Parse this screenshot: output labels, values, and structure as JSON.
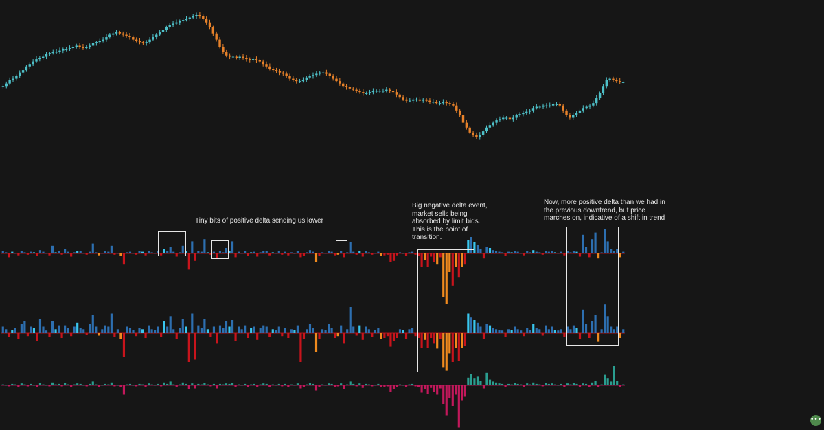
{
  "annotations": {
    "positive_delta": "Tiny bits of positive delta sending us lower",
    "negative_delta_event": "Big negative delta event, market sells being absorbed by limit bids. This is the point of transition.",
    "trend_shift": "Now, more positive delta than we had in the previous downtrend, but price marches on, indicative of a shift in trend"
  },
  "chat_button": {
    "icon": "ellipsis-icon",
    "label": "•••"
  },
  "colors": {
    "background": "#161616",
    "candle_up": "#4ec0c8",
    "candle_down": "#e8822a",
    "delta_pos_bright": "#39c6ee",
    "delta_pos_dark": "#2d6fb0",
    "delta_neg_orange": "#f08a1e",
    "delta_neg_red": "#c8141c",
    "vol_pos": "#2a9d8f",
    "vol_neg": "#c2185b",
    "highlight_box": "#e6e6e6"
  },
  "chart_data": [
    {
      "type": "candlestick",
      "title": "",
      "description_unit": "price (relative, no axis printed)",
      "close_path": [
        0.42,
        0.44,
        0.47,
        0.48,
        0.5,
        0.53,
        0.55,
        0.58,
        0.6,
        0.62,
        0.64,
        0.65,
        0.66,
        0.68,
        0.69,
        0.7,
        0.7,
        0.71,
        0.72,
        0.72,
        0.73,
        0.74,
        0.75,
        0.74,
        0.73,
        0.74,
        0.75,
        0.77,
        0.78,
        0.79,
        0.8,
        0.82,
        0.84,
        0.85,
        0.86,
        0.85,
        0.84,
        0.83,
        0.82,
        0.8,
        0.79,
        0.78,
        0.77,
        0.78,
        0.8,
        0.82,
        0.84,
        0.86,
        0.88,
        0.9,
        0.92,
        0.93,
        0.94,
        0.95,
        0.96,
        0.97,
        0.98,
        0.99,
        1.0,
        0.99,
        0.97,
        0.94,
        0.9,
        0.85,
        0.8,
        0.74,
        0.7,
        0.67,
        0.66,
        0.66,
        0.65,
        0.66,
        0.65,
        0.64,
        0.63,
        0.64,
        0.63,
        0.62,
        0.6,
        0.58,
        0.56,
        0.55,
        0.54,
        0.53,
        0.52,
        0.5,
        0.48,
        0.47,
        0.46,
        0.46,
        0.47,
        0.49,
        0.5,
        0.51,
        0.52,
        0.53,
        0.53,
        0.52,
        0.5,
        0.48,
        0.46,
        0.44,
        0.42,
        0.41,
        0.4,
        0.39,
        0.38,
        0.37,
        0.36,
        0.36,
        0.37,
        0.38,
        0.38,
        0.38,
        0.38,
        0.39,
        0.38,
        0.37,
        0.35,
        0.33,
        0.31,
        0.3,
        0.3,
        0.31,
        0.31,
        0.3,
        0.31,
        0.3,
        0.29,
        0.29,
        0.28,
        0.28,
        0.29,
        0.28,
        0.27,
        0.26,
        0.22,
        0.18,
        0.12,
        0.08,
        0.04,
        0.02,
        0.0,
        0.02,
        0.05,
        0.08,
        0.1,
        0.12,
        0.14,
        0.15,
        0.16,
        0.16,
        0.15,
        0.16,
        0.18,
        0.19,
        0.2,
        0.21,
        0.22,
        0.24,
        0.25,
        0.25,
        0.26,
        0.26,
        0.26,
        0.27,
        0.27,
        0.26,
        0.22,
        0.18,
        0.16,
        0.18,
        0.2,
        0.22,
        0.24,
        0.25,
        0.26,
        0.28,
        0.32,
        0.36,
        0.42,
        0.47,
        0.48,
        0.47,
        0.46,
        0.45,
        0.45
      ]
    },
    {
      "type": "bar",
      "title": "",
      "series": [
        {
          "values": [
            0.04,
            0.02,
            -0.06,
            0.03,
            0.01,
            -0.03,
            0.05,
            0.02,
            -0.02,
            0.03,
            0.02,
            -0.04,
            0.06,
            0.03,
            0.01,
            -0.03,
            0.14,
            0.02,
            0.04,
            -0.02,
            0.08,
            0.03,
            -0.05,
            0.02,
            0.05,
            0.04,
            0.01,
            -0.02,
            0.03,
            0.18,
            0.02,
            -0.03,
            0.01,
            0.04,
            0.03,
            0.14,
            -0.02,
            0.01,
            -0.04,
            -0.18,
            0.02,
            0.03,
            0.01,
            -0.02,
            0.04,
            0.03,
            -0.03,
            0.05,
            0.02,
            0.01,
            0.04,
            -0.03,
            0.08,
            0.04,
            0.12,
            0.03,
            -0.05,
            0.02,
            0.14,
            0.04,
            -0.26,
            0.22,
            -0.12,
            0.05,
            0.03,
            0.26,
            0.02,
            -0.02,
            0.03,
            -0.08,
            0.04,
            0.02,
            0.1,
            0.04,
            0.22,
            -0.06,
            0.03,
            0.01,
            0.04,
            -0.04,
            0.02,
            0.03,
            -0.05,
            0.02,
            0.05,
            0.04,
            -0.03,
            0.02,
            0.01,
            0.04,
            -0.02,
            0.03,
            -0.03,
            0.02,
            0.01,
            0.04,
            -0.06,
            -0.04,
            0.02,
            0.06,
            0.03,
            -0.14,
            -0.04,
            0.02,
            0.01,
            0.05,
            0.03,
            -0.03,
            -0.02,
            0.04,
            -0.06,
            0.02,
            0.2,
            0.03,
            -0.02,
            0.04,
            -0.05,
            0.04,
            0.02,
            -0.02,
            0.01,
            0.03,
            -0.04,
            -0.03,
            -0.02,
            -0.14,
            -0.12,
            -0.03,
            0.02,
            0.01,
            -0.04,
            0.02,
            0.03,
            -0.02,
            -0.04,
            -0.22,
            -0.1,
            -0.22,
            -0.05,
            -0.14,
            -0.18,
            -0.06,
            -0.7,
            -0.82,
            -0.3,
            -0.52,
            -0.22,
            -0.38,
            -0.22,
            -0.18,
            0.24,
            0.3,
            0.2,
            0.16,
            0.08,
            -0.08,
            0.12,
            0.1,
            0.06,
            0.04,
            0.03,
            0.02,
            -0.04,
            0.03,
            0.02,
            0.05,
            0.03,
            0.01,
            -0.03,
            0.04,
            0.02,
            0.06,
            0.03,
            0.02,
            -0.02,
            0.05,
            0.03,
            0.04,
            0.02,
            0.01,
            0.03,
            -0.03,
            0.04,
            0.02,
            0.05,
            0.03,
            -0.05,
            0.34,
            0.12,
            -0.06,
            0.26,
            0.38,
            -0.08,
            0.02,
            0.44,
            0.22,
            0.08,
            0.04,
            0.08,
            -0.06,
            0.03
          ]
        }
      ]
    },
    {
      "type": "bar",
      "title": "",
      "series": [
        {
          "values": [
            0.1,
            0.06,
            -0.08,
            0.05,
            0.08,
            -0.12,
            0.14,
            0.18,
            -0.06,
            0.1,
            0.08,
            -0.16,
            0.22,
            0.1,
            0.04,
            -0.08,
            0.18,
            0.06,
            0.12,
            -0.1,
            0.12,
            0.08,
            -0.06,
            0.1,
            0.16,
            0.08,
            0.06,
            -0.04,
            0.14,
            0.28,
            0.1,
            -0.05,
            0.06,
            0.12,
            0.1,
            0.3,
            -0.08,
            0.06,
            -0.12,
            -0.5,
            0.1,
            0.08,
            0.05,
            -0.06,
            0.08,
            0.06,
            -0.1,
            0.12,
            0.06,
            0.05,
            0.1,
            -0.08,
            0.18,
            0.1,
            0.26,
            0.06,
            -0.12,
            0.08,
            0.22,
            0.1,
            -0.6,
            0.3,
            -0.55,
            0.12,
            0.08,
            0.22,
            0.06,
            -0.08,
            0.1,
            -0.22,
            0.12,
            0.08,
            0.18,
            0.1,
            0.2,
            -0.16,
            0.1,
            0.06,
            0.12,
            -0.1,
            0.08,
            0.1,
            -0.14,
            0.08,
            0.12,
            0.1,
            -0.08,
            0.06,
            0.05,
            0.1,
            -0.06,
            0.08,
            -0.1,
            0.06,
            0.05,
            0.12,
            -0.6,
            -0.12,
            0.06,
            0.14,
            0.08,
            -0.4,
            -0.12,
            0.06,
            0.05,
            0.14,
            0.08,
            -0.1,
            -0.06,
            0.12,
            -0.22,
            0.06,
            0.4,
            0.1,
            -0.05,
            0.12,
            -0.14,
            0.1,
            0.06,
            -0.08,
            0.05,
            0.08,
            -0.12,
            -0.1,
            -0.06,
            -0.28,
            -0.16,
            -0.1,
            0.06,
            0.05,
            -0.12,
            0.06,
            0.08,
            -0.06,
            -0.1,
            -0.3,
            -0.14,
            -0.3,
            -0.1,
            -0.22,
            -0.32,
            -0.12,
            -0.72,
            -0.78,
            -0.42,
            -0.6,
            -0.3,
            -0.58,
            -0.3,
            -0.26,
            0.3,
            0.24,
            0.2,
            0.16,
            0.1,
            -0.12,
            0.14,
            0.12,
            0.08,
            0.06,
            0.05,
            0.04,
            -0.08,
            0.06,
            0.05,
            0.1,
            0.06,
            0.04,
            -0.06,
            0.08,
            0.05,
            0.14,
            0.08,
            0.06,
            -0.05,
            0.12,
            0.06,
            0.1,
            0.05,
            0.04,
            0.06,
            -0.08,
            0.1,
            0.06,
            0.12,
            0.08,
            -0.12,
            0.36,
            0.14,
            -0.1,
            0.18,
            0.28,
            -0.18,
            0.06,
            0.44,
            0.26,
            0.1,
            0.06,
            0.1,
            -0.1,
            0.06
          ]
        }
      ]
    },
    {
      "type": "bar",
      "title": "",
      "series": [
        {
          "values": [
            0.02,
            0.01,
            -0.02,
            0.03,
            0.02,
            -0.03,
            0.04,
            0.02,
            -0.02,
            0.03,
            0.01,
            -0.04,
            0.05,
            0.02,
            0.01,
            -0.02,
            0.06,
            0.02,
            0.03,
            -0.02,
            0.05,
            0.02,
            -0.03,
            0.02,
            0.04,
            0.03,
            0.01,
            -0.02,
            0.03,
            0.08,
            0.02,
            -0.03,
            0.01,
            0.03,
            0.02,
            0.06,
            -0.02,
            0.01,
            -0.04,
            -0.18,
            0.02,
            0.03,
            0.01,
            -0.02,
            0.03,
            0.02,
            -0.03,
            0.04,
            0.02,
            0.01,
            0.03,
            -0.02,
            0.06,
            0.03,
            0.08,
            0.02,
            -0.04,
            0.02,
            0.06,
            0.03,
            -0.08,
            0.04,
            -0.06,
            0.03,
            0.02,
            0.05,
            0.02,
            -0.02,
            0.03,
            -0.06,
            0.03,
            0.02,
            0.04,
            0.03,
            0.05,
            -0.04,
            0.02,
            0.01,
            0.03,
            -0.03,
            0.02,
            0.03,
            -0.04,
            0.02,
            0.04,
            0.03,
            -0.03,
            0.02,
            0.01,
            0.03,
            -0.02,
            0.03,
            -0.03,
            0.02,
            0.01,
            0.04,
            -0.06,
            -0.04,
            0.02,
            0.05,
            0.03,
            -0.1,
            -0.04,
            0.02,
            0.01,
            0.04,
            0.03,
            -0.03,
            -0.02,
            0.04,
            -0.08,
            0.02,
            0.08,
            0.03,
            -0.02,
            0.04,
            -0.05,
            0.03,
            0.02,
            -0.02,
            0.01,
            0.03,
            -0.04,
            -0.03,
            -0.02,
            -0.12,
            -0.08,
            -0.03,
            0.02,
            0.01,
            -0.04,
            0.02,
            0.03,
            -0.02,
            -0.04,
            -0.14,
            -0.08,
            -0.16,
            -0.05,
            -0.12,
            -0.18,
            -0.06,
            -0.36,
            -0.58,
            -0.24,
            -0.4,
            -0.18,
            -0.82,
            -0.3,
            -0.22,
            0.16,
            0.24,
            0.14,
            0.18,
            0.1,
            -0.06,
            0.26,
            0.12,
            0.08,
            0.06,
            0.04,
            0.03,
            -0.04,
            0.03,
            0.02,
            0.05,
            0.03,
            0.02,
            -0.03,
            0.04,
            0.02,
            0.06,
            0.03,
            0.02,
            -0.02,
            0.05,
            0.03,
            0.04,
            0.02,
            0.01,
            0.03,
            -0.03,
            0.04,
            0.02,
            0.05,
            0.03,
            -0.04,
            0.04,
            0.03,
            -0.03,
            0.06,
            0.1,
            -0.04,
            0.02,
            0.22,
            0.14,
            0.08,
            0.4,
            0.1,
            -0.03,
            0.02
          ]
        }
      ]
    }
  ]
}
